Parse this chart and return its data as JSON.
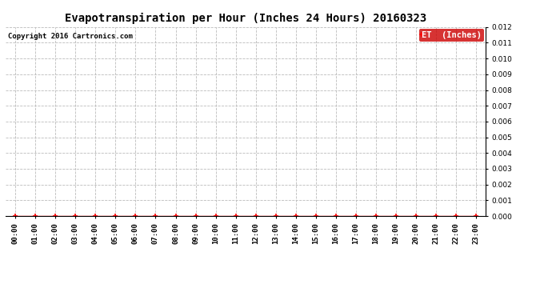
{
  "title": "Evapotranspiration per Hour (Inches 24 Hours) 20160323",
  "copyright_text": "Copyright 2016 Cartronics.com",
  "legend_label": "ET  (Inches)",
  "legend_bg_color": "#cc0000",
  "legend_text_color": "#ffffff",
  "x_labels": [
    "00:00",
    "01:00",
    "02:00",
    "03:00",
    "04:00",
    "05:00",
    "06:00",
    "07:00",
    "08:00",
    "09:00",
    "10:00",
    "11:00",
    "12:00",
    "13:00",
    "14:00",
    "15:00",
    "16:00",
    "17:00",
    "18:00",
    "19:00",
    "20:00",
    "21:00",
    "22:00",
    "23:00"
  ],
  "et_values": [
    0,
    0,
    0,
    0,
    0,
    0,
    0,
    0,
    0,
    0,
    0,
    0,
    0,
    0,
    0,
    0,
    0,
    0,
    0,
    0,
    0,
    0,
    0,
    0
  ],
  "line_color": "#ff0000",
  "marker": "+",
  "marker_color": "#ff0000",
  "ylim": [
    0,
    0.012
  ],
  "yticks": [
    0.0,
    0.001,
    0.002,
    0.003,
    0.004,
    0.005,
    0.006,
    0.007,
    0.008,
    0.009,
    0.01,
    0.011,
    0.012
  ],
  "grid_color": "#bbbbbb",
  "grid_style": "--",
  "background_color": "#ffffff",
  "title_fontsize": 10,
  "copyright_fontsize": 6.5,
  "tick_fontsize": 6.5,
  "legend_fontsize": 7.5
}
